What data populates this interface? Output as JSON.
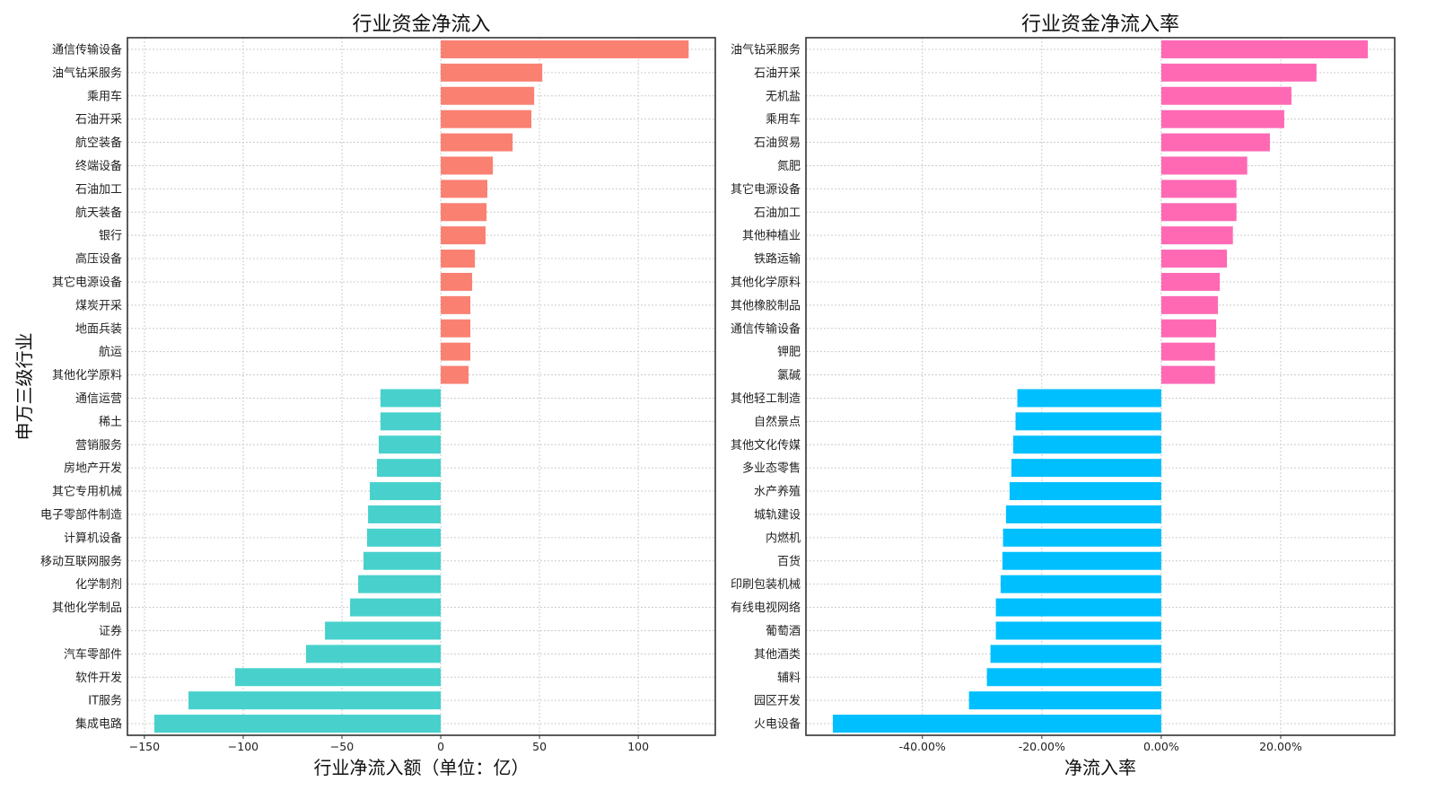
{
  "chart_data": [
    {
      "type": "bar",
      "orientation": "horizontal",
      "title": "行业资金净流入",
      "xlabel": "行业净流入额（单位：亿）",
      "ylabel": "申万三级行业",
      "xlim": [
        -158.6,
        139
      ],
      "xticks": [
        -150,
        -100,
        -50,
        0,
        50,
        100
      ],
      "xtick_labels": [
        "−150",
        "−100",
        "−50",
        "0",
        "50",
        "100"
      ],
      "grid": true,
      "positive_color": "#FA8072",
      "negative_color": "#48D1CC",
      "categories": [
        "通信传输设备",
        "油气钻采服务",
        "乘用车",
        "石油开采",
        "航空装备",
        "终端设备",
        "石油加工",
        "航天装备",
        "银行",
        "高压设备",
        "其它电源设备",
        "煤炭开采",
        "地面兵装",
        "航运",
        "其他化学原料",
        "通信运营",
        "稀土",
        "营销服务",
        "房地产开发",
        "其它专用机械",
        "电子零部件制造",
        "计算机设备",
        "移动互联网服务",
        "化学制剂",
        "其他化学制品",
        "证券",
        "汽车零部件",
        "软件开发",
        "IT服务",
        "集成电路"
      ],
      "values": [
        125.5,
        51.4,
        47.3,
        45.9,
        36.4,
        26.4,
        23.6,
        23.2,
        22.7,
        17.3,
        15.9,
        15.0,
        15.0,
        15.0,
        14.1,
        -30.5,
        -30.5,
        -31.4,
        -32.3,
        -35.9,
        -36.8,
        -37.3,
        -39.1,
        -41.8,
        -45.9,
        -58.6,
        -68.2,
        -104.1,
        -127.7,
        -145.0
      ]
    },
    {
      "type": "bar",
      "orientation": "horizontal",
      "title": "行业资金净流入率",
      "xlabel": "净流入率",
      "ylabel": "",
      "xlim": [
        -59.5,
        39.1
      ],
      "xticks": [
        -40,
        -20,
        0,
        20
      ],
      "xtick_labels": [
        "-40.00%",
        "-20.00%",
        "0.00%",
        "20.00%"
      ],
      "grid": true,
      "positive_color": "#FF69B4",
      "negative_color": "#00BFFF",
      "categories": [
        "油气钻采服务",
        "石油开采",
        "无机盐",
        "乘用车",
        "石油贸易",
        "氮肥",
        "其它电源设备",
        "石油加工",
        "其他种植业",
        "铁路运输",
        "其他化学原料",
        "其他橡胶制品",
        "通信传输设备",
        "钾肥",
        "氯碱",
        "其他轻工制造",
        "自然景点",
        "其他文化传媒",
        "多业态零售",
        "水产养殖",
        "城轨建设",
        "内燃机",
        "百货",
        "印刷包装机械",
        "有线电视网络",
        "葡萄酒",
        "其他酒类",
        "辅料",
        "园区开发",
        "火电设备"
      ],
      "values": [
        34.6,
        26.0,
        21.8,
        20.6,
        18.2,
        14.4,
        12.6,
        12.6,
        12.0,
        11.0,
        9.8,
        9.5,
        9.2,
        9.0,
        9.0,
        -24.1,
        -24.4,
        -24.8,
        -25.1,
        -25.4,
        -26.0,
        -26.5,
        -26.6,
        -26.9,
        -27.7,
        -27.7,
        -28.6,
        -29.2,
        -32.2,
        -55.0
      ]
    }
  ]
}
